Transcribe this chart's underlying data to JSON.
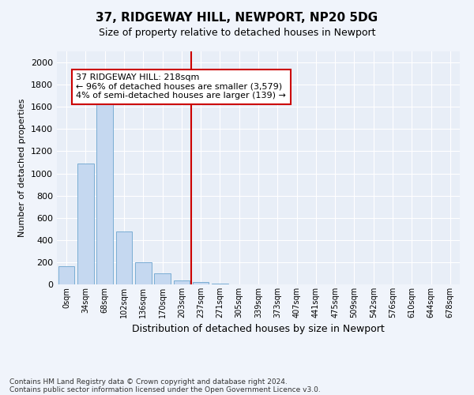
{
  "title": "37, RIDGEWAY HILL, NEWPORT, NP20 5DG",
  "subtitle": "Size of property relative to detached houses in Newport",
  "xlabel": "Distribution of detached houses by size in Newport",
  "ylabel": "Number of detached properties",
  "bar_color": "#c5d8f0",
  "bar_edge_color": "#7aadd4",
  "categories": [
    "0sqm",
    "34sqm",
    "68sqm",
    "102sqm",
    "136sqm",
    "170sqm",
    "203sqm",
    "237sqm",
    "271sqm",
    "305sqm",
    "339sqm",
    "373sqm",
    "407sqm",
    "441sqm",
    "475sqm",
    "509sqm",
    "542sqm",
    "576sqm",
    "610sqm",
    "644sqm",
    "678sqm"
  ],
  "values": [
    165,
    1090,
    1625,
    480,
    200,
    100,
    35,
    20,
    10,
    0,
    0,
    0,
    0,
    0,
    0,
    0,
    0,
    0,
    0,
    0,
    0
  ],
  "ylim": [
    0,
    2100
  ],
  "yticks": [
    0,
    200,
    400,
    600,
    800,
    1000,
    1200,
    1400,
    1600,
    1800,
    2000
  ],
  "vline_x": 6.5,
  "vline_color": "#cc0000",
  "annotation_text": "37 RIDGEWAY HILL: 218sqm\n← 96% of detached houses are smaller (3,579)\n4% of semi-detached houses are larger (139) →",
  "annotation_box_facecolor": "#ffffff",
  "annotation_box_edge": "#cc0000",
  "footnote1": "Contains HM Land Registry data © Crown copyright and database right 2024.",
  "footnote2": "Contains public sector information licensed under the Open Government Licence v3.0.",
  "fig_facecolor": "#f0f4fb",
  "plot_bg_color": "#e8eef7",
  "grid_color": "#ffffff",
  "title_fontsize": 11,
  "subtitle_fontsize": 9,
  "ylabel_fontsize": 8,
  "xlabel_fontsize": 9
}
